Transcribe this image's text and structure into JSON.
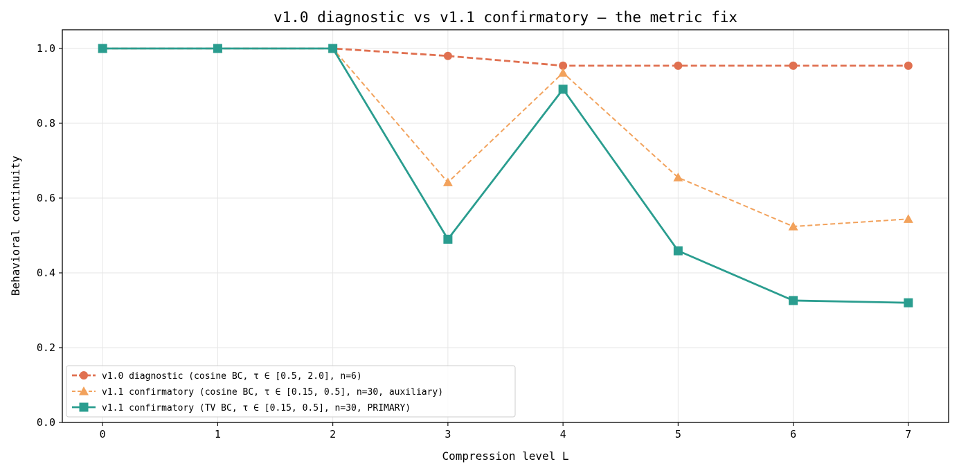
{
  "chart_data": {
    "type": "line",
    "title": "v1.0 diagnostic vs v1.1 confirmatory — the metric fix",
    "xlabel": "Compression level L",
    "ylabel": "Behavioral continuity",
    "x": [
      0,
      1,
      2,
      3,
      4,
      5,
      6,
      7
    ],
    "xticks": [
      "0",
      "1",
      "2",
      "3",
      "4",
      "5",
      "6",
      "7"
    ],
    "yticks": [
      "0.0",
      "0.2",
      "0.4",
      "0.6",
      "0.8",
      "1.0"
    ],
    "xlim": [
      -0.35,
      7.35
    ],
    "ylim": [
      0.0,
      1.05
    ],
    "grid": true,
    "legend_position": "lower-left",
    "series": [
      {
        "name": "v1.0 diagnostic (cosine BC, τ ∈ [0.5, 2.0], n=6)",
        "values": [
          1.0,
          1.0,
          1.0,
          0.98,
          0.954,
          0.954,
          0.954,
          0.954
        ],
        "color": "#e07050",
        "marker": "circle",
        "line_style": "dashed-bold"
      },
      {
        "name": "v1.1 confirmatory (cosine BC, τ ∈ [0.15, 0.5], n=30, auxiliary)",
        "values": [
          1.0,
          1.0,
          1.0,
          0.642,
          0.935,
          0.655,
          0.524,
          0.544
        ],
        "color": "#f2a25c",
        "marker": "triangle",
        "line_style": "dashed"
      },
      {
        "name": "v1.1 confirmatory (TV BC, τ ∈ [0.15, 0.5], n=30, PRIMARY)",
        "values": [
          1.0,
          1.0,
          1.0,
          0.49,
          0.891,
          0.459,
          0.326,
          0.32
        ],
        "color": "#2a9d8f",
        "marker": "square",
        "line_style": "solid"
      }
    ]
  }
}
